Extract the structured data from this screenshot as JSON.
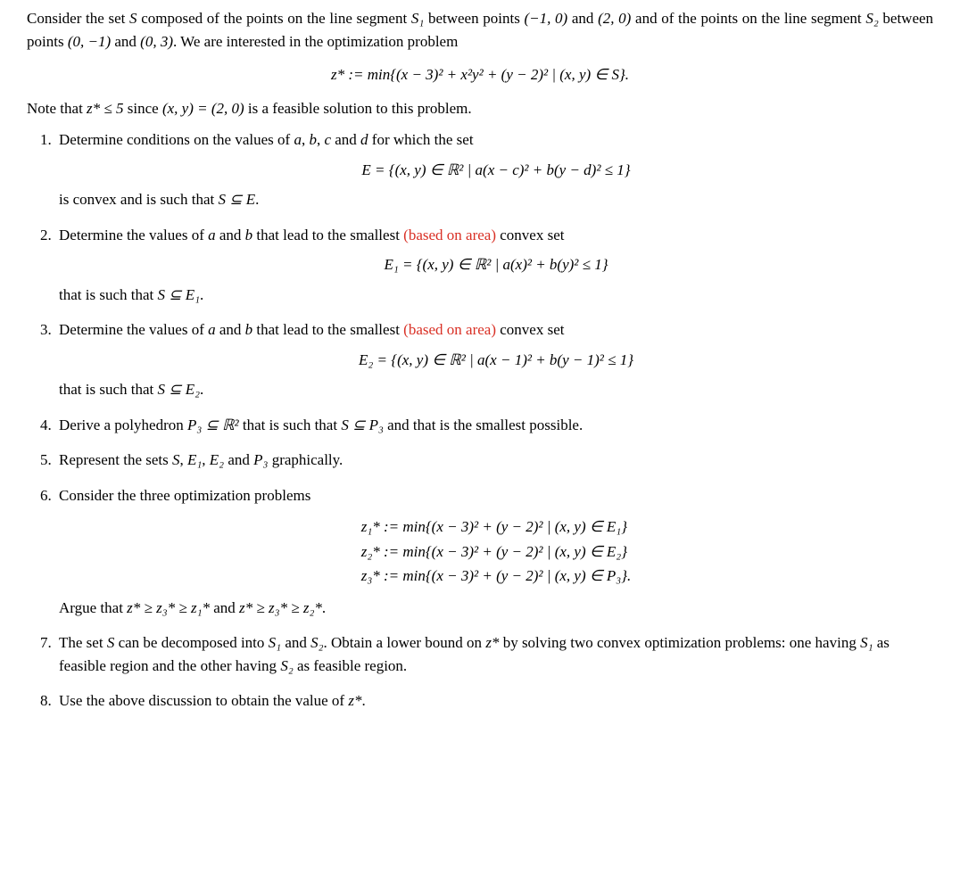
{
  "intro": {
    "p1_a": "Consider the set ",
    "p1_b": " composed of the points on the line segment ",
    "p1_c": " between points ",
    "p1_d": " and ",
    "p1_e": " and of the points on the line segment ",
    "p1_f": " between points ",
    "p1_g": " and ",
    "p1_h": ". We are interested in the optimization problem",
    "S": "S",
    "S1": "S₁",
    "S2": "S₂",
    "pt1": "(−1, 0)",
    "pt2": "(2, 0)",
    "pt3": "(0, −1)",
    "pt4": "(0, 3)",
    "eq1": "z* := min{(x − 3)² + x²y² + (y − 2)² | (x, y) ∈ S}.",
    "p2_a": "Note that ",
    "p2_b": " since ",
    "p2_c": " is a feasible solution to this problem.",
    "note_ineq": "z* ≤ 5",
    "note_pt": "(x, y) = (2, 0)"
  },
  "items": {
    "q1": {
      "a": "Determine conditions on the values of ",
      "b": ", ",
      "c": ", ",
      "d": " and ",
      "e": " for which the set",
      "va": "a",
      "vb": "b",
      "vc": "c",
      "vd": "d",
      "eq": "E = {(x, y) ∈ ℝ² | a(x − c)² + b(y − d)² ≤ 1}",
      "tail_a": "is convex and is such that ",
      "tail_rel": "S ⊆ E",
      "tail_b": "."
    },
    "q2": {
      "a": "Determine the values of ",
      "b": " and ",
      "c": " that lead to the smallest ",
      "hl": "(based on area)",
      "d": " convex set",
      "va": "a",
      "vb": "b",
      "eq": "E₁ = {(x, y) ∈ ℝ² | a(x)² + b(y)² ≤ 1}",
      "tail_a": "that is such that ",
      "tail_rel": "S ⊆ E₁",
      "tail_b": "."
    },
    "q3": {
      "a": "Determine the values of ",
      "b": " and ",
      "c": " that lead to the smallest ",
      "hl": "(based on area)",
      "d": " convex set",
      "va": "a",
      "vb": "b",
      "eq": "E₂ = {(x, y) ∈ ℝ² | a(x − 1)² + b(y − 1)² ≤ 1}",
      "tail_a": "that is such that ",
      "tail_rel": "S ⊆ E₂",
      "tail_b": "."
    },
    "q4": {
      "a": "Derive a polyhedron ",
      "b": " that is such that ",
      "c": " and that is the smallest possible.",
      "p3": "P₃ ⊆ ℝ²",
      "rel": "S ⊆ P₃"
    },
    "q5": {
      "a": "Represent the sets ",
      "b": ", ",
      "c": ", ",
      "d": " and ",
      "e": " graphically.",
      "S": "S",
      "E1": "E₁",
      "E2": "E₂",
      "P3": "P₃"
    },
    "q6": {
      "a": "Consider the three optimization problems",
      "eq1": "z₁* := min{(x − 3)² + (y − 2)² | (x, y) ∈ E₁}",
      "eq2": "z₂* := min{(x − 3)² + (y − 2)² | (x, y) ∈ E₂}",
      "eq3": "z₃* := min{(x − 3)² + (y − 2)² | (x, y) ∈ P₃}.",
      "tail_a": "Argue that ",
      "rel1": "z* ≥ z₃* ≥ z₁*",
      "tail_b": " and ",
      "rel2": "z* ≥ z₃* ≥ z₂*",
      "tail_c": "."
    },
    "q7": {
      "a": "The set ",
      "b": " can be decomposed into ",
      "c": " and ",
      "d": ". Obtain a lower bound on ",
      "e": " by solving two convex optimization problems: one having ",
      "f": " as feasible region and the other having ",
      "g": " as feasible region.",
      "S": "S",
      "S1": "S₁",
      "S2": "S₂",
      "zs": "z*",
      "S1b": "S₁",
      "S2b": "S₂"
    },
    "q8": {
      "a": "Use the above discussion to obtain the value of ",
      "zs": "z*",
      "b": "."
    }
  }
}
